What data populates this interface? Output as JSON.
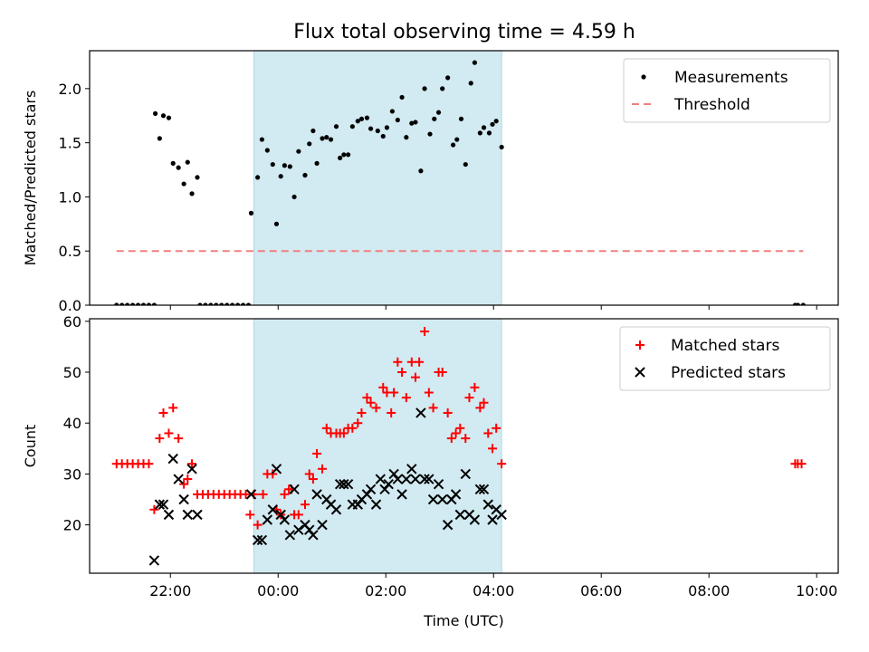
{
  "figure": {
    "title": "Flux total observing time = 4.59 h"
  },
  "colors": {
    "shade": "#add8e6",
    "measurement": "#000000",
    "threshold": "#f08080",
    "matched": "#ff0000",
    "predicted": "#000000"
  },
  "chart_data": [
    {
      "type": "scatter",
      "ylabel": "Matched/Predicted stars",
      "xlim_hours_utc_since_prev_midnight": [
        20.5,
        34.4
      ],
      "ylim": [
        0,
        2.35
      ],
      "yticks": [
        "0.0",
        "0.5",
        "1.0",
        "1.5",
        "2.0"
      ],
      "shaded_interval_utc": [
        "23:33",
        "04:09"
      ],
      "legend_position": "top-right",
      "threshold": {
        "name": "Threshold",
        "value": 0.5,
        "x_range_utc": [
          "21:00",
          "09:45"
        ],
        "style": "dashed"
      },
      "series": [
        {
          "name": "Measurements",
          "marker": "dot",
          "points_utc_hour": [
            [
              21.0,
              0
            ],
            [
              21.1,
              0
            ],
            [
              21.2,
              0
            ],
            [
              21.3,
              0
            ],
            [
              21.4,
              0
            ],
            [
              21.5,
              0
            ],
            [
              21.6,
              0
            ],
            [
              21.7,
              0
            ],
            [
              21.72,
              1.77
            ],
            [
              21.8,
              1.54
            ],
            [
              21.87,
              1.75
            ],
            [
              21.97,
              1.73
            ],
            [
              22.05,
              1.31
            ],
            [
              22.15,
              1.27
            ],
            [
              22.25,
              1.12
            ],
            [
              22.32,
              1.32
            ],
            [
              22.4,
              1.03
            ],
            [
              22.5,
              1.18
            ],
            [
              22.55,
              0
            ],
            [
              22.65,
              0
            ],
            [
              22.75,
              0
            ],
            [
              22.85,
              0
            ],
            [
              22.95,
              0
            ],
            [
              23.05,
              0
            ],
            [
              23.15,
              0
            ],
            [
              23.25,
              0
            ],
            [
              23.35,
              0
            ],
            [
              23.45,
              0
            ],
            [
              23.5,
              0.85
            ],
            [
              23.62,
              1.18
            ],
            [
              23.7,
              1.53
            ],
            [
              23.8,
              1.43
            ],
            [
              23.9,
              1.3
            ],
            [
              23.97,
              0.75
            ],
            [
              24.05,
              1.19
            ],
            [
              24.12,
              1.29
            ],
            [
              24.22,
              1.28
            ],
            [
              24.3,
              1.0
            ],
            [
              24.38,
              1.42
            ],
            [
              24.5,
              1.2
            ],
            [
              24.58,
              1.49
            ],
            [
              24.65,
              1.61
            ],
            [
              24.72,
              1.31
            ],
            [
              24.82,
              1.54
            ],
            [
              24.9,
              1.55
            ],
            [
              24.98,
              1.53
            ],
            [
              25.08,
              1.65
            ],
            [
              25.15,
              1.36
            ],
            [
              25.22,
              1.39
            ],
            [
              25.3,
              1.39
            ],
            [
              25.38,
              1.65
            ],
            [
              25.48,
              1.7
            ],
            [
              25.55,
              1.72
            ],
            [
              25.65,
              1.73
            ],
            [
              25.72,
              1.63
            ],
            [
              25.85,
              1.61
            ],
            [
              25.95,
              1.56
            ],
            [
              26.02,
              1.64
            ],
            [
              26.12,
              1.79
            ],
            [
              26.22,
              1.71
            ],
            [
              26.3,
              1.92
            ],
            [
              26.38,
              1.55
            ],
            [
              26.48,
              1.68
            ],
            [
              26.55,
              1.69
            ],
            [
              26.65,
              1.24
            ],
            [
              26.72,
              2.0
            ],
            [
              26.82,
              1.58
            ],
            [
              26.9,
              1.72
            ],
            [
              26.98,
              1.78
            ],
            [
              27.05,
              2.0
            ],
            [
              27.15,
              2.1
            ],
            [
              27.25,
              1.48
            ],
            [
              27.32,
              1.53
            ],
            [
              27.4,
              1.72
            ],
            [
              27.48,
              1.3
            ],
            [
              27.58,
              2.05
            ],
            [
              27.65,
              2.24
            ],
            [
              27.75,
              1.59
            ],
            [
              27.82,
              1.64
            ],
            [
              27.92,
              1.59
            ],
            [
              27.98,
              1.67
            ],
            [
              28.05,
              1.7
            ],
            [
              28.15,
              1.46
            ],
            [
              33.6,
              0
            ],
            [
              33.65,
              0
            ],
            [
              33.75,
              0
            ]
          ]
        }
      ]
    },
    {
      "type": "scatter",
      "xlabel": "Time (UTC)",
      "ylabel": "Count",
      "xlim_hours_utc_since_prev_midnight": [
        20.5,
        34.4
      ],
      "ylim": [
        10.5,
        60.5
      ],
      "yticks": [
        "20",
        "30",
        "40",
        "50",
        "60"
      ],
      "xticks": [
        "22:00",
        "00:00",
        "02:00",
        "04:00",
        "06:00",
        "08:00",
        "10:00"
      ],
      "shaded_interval_utc": [
        "23:33",
        "04:09"
      ],
      "legend_position": "top-right",
      "series": [
        {
          "name": "Matched stars",
          "marker": "plus",
          "points_utc_hour": [
            [
              21.0,
              32
            ],
            [
              21.1,
              32
            ],
            [
              21.2,
              32
            ],
            [
              21.3,
              32
            ],
            [
              21.4,
              32
            ],
            [
              21.5,
              32
            ],
            [
              21.6,
              32
            ],
            [
              21.7,
              23
            ],
            [
              21.8,
              37
            ],
            [
              21.87,
              42
            ],
            [
              21.97,
              38
            ],
            [
              22.05,
              43
            ],
            [
              22.15,
              37
            ],
            [
              22.25,
              28
            ],
            [
              22.32,
              29
            ],
            [
              22.4,
              32
            ],
            [
              22.5,
              26
            ],
            [
              22.6,
              26
            ],
            [
              22.7,
              26
            ],
            [
              22.8,
              26
            ],
            [
              22.9,
              26
            ],
            [
              23.0,
              26
            ],
            [
              23.1,
              26
            ],
            [
              23.2,
              26
            ],
            [
              23.3,
              26
            ],
            [
              23.4,
              26
            ],
            [
              23.48,
              22
            ],
            [
              23.55,
              26
            ],
            [
              23.62,
              20
            ],
            [
              23.72,
              26
            ],
            [
              23.8,
              30
            ],
            [
              23.9,
              30
            ],
            [
              23.97,
              23
            ],
            [
              24.05,
              22
            ],
            [
              24.12,
              26
            ],
            [
              24.2,
              27
            ],
            [
              24.25,
              27
            ],
            [
              24.3,
              22
            ],
            [
              24.38,
              22
            ],
            [
              24.5,
              24
            ],
            [
              24.58,
              30
            ],
            [
              24.65,
              29
            ],
            [
              24.72,
              34
            ],
            [
              24.82,
              31
            ],
            [
              24.9,
              39
            ],
            [
              24.98,
              38
            ],
            [
              25.08,
              38
            ],
            [
              25.15,
              38
            ],
            [
              25.22,
              38
            ],
            [
              25.3,
              39
            ],
            [
              25.38,
              39
            ],
            [
              25.48,
              40
            ],
            [
              25.55,
              42
            ],
            [
              25.65,
              45
            ],
            [
              25.72,
              44
            ],
            [
              25.82,
              43
            ],
            [
              25.95,
              47
            ],
            [
              26.02,
              46
            ],
            [
              26.1,
              42
            ],
            [
              26.15,
              46
            ],
            [
              26.22,
              52
            ],
            [
              26.3,
              50
            ],
            [
              26.38,
              45
            ],
            [
              26.48,
              52
            ],
            [
              26.55,
              49
            ],
            [
              26.62,
              52
            ],
            [
              26.72,
              58
            ],
            [
              26.8,
              46
            ],
            [
              26.88,
              43
            ],
            [
              26.98,
              50
            ],
            [
              27.05,
              50
            ],
            [
              27.15,
              42
            ],
            [
              27.22,
              37
            ],
            [
              27.3,
              38
            ],
            [
              27.38,
              39
            ],
            [
              27.48,
              37
            ],
            [
              27.55,
              45
            ],
            [
              27.65,
              47
            ],
            [
              27.75,
              43
            ],
            [
              27.82,
              44
            ],
            [
              27.9,
              38
            ],
            [
              27.98,
              35
            ],
            [
              28.05,
              39
            ],
            [
              28.15,
              32
            ],
            [
              33.6,
              32
            ],
            [
              33.65,
              32
            ],
            [
              33.72,
              32
            ]
          ]
        },
        {
          "name": "Predicted stars",
          "marker": "x",
          "points_utc_hour": [
            [
              21.7,
              13
            ],
            [
              21.8,
              24
            ],
            [
              21.87,
              24
            ],
            [
              21.97,
              22
            ],
            [
              22.05,
              33
            ],
            [
              22.15,
              29
            ],
            [
              22.25,
              25
            ],
            [
              22.32,
              22
            ],
            [
              22.4,
              31
            ],
            [
              22.5,
              22
            ],
            [
              23.5,
              26
            ],
            [
              23.62,
              17
            ],
            [
              23.7,
              17
            ],
            [
              23.8,
              21
            ],
            [
              23.9,
              23
            ],
            [
              23.97,
              31
            ],
            [
              24.05,
              22
            ],
            [
              24.12,
              21
            ],
            [
              24.22,
              18
            ],
            [
              24.3,
              27
            ],
            [
              24.38,
              19
            ],
            [
              24.5,
              20
            ],
            [
              24.58,
              19
            ],
            [
              24.65,
              18
            ],
            [
              24.72,
              26
            ],
            [
              24.82,
              20
            ],
            [
              24.9,
              25
            ],
            [
              24.98,
              24
            ],
            [
              25.08,
              23
            ],
            [
              25.15,
              28
            ],
            [
              25.22,
              28
            ],
            [
              25.3,
              28
            ],
            [
              25.38,
              24
            ],
            [
              25.48,
              24
            ],
            [
              25.55,
              25
            ],
            [
              25.65,
              26
            ],
            [
              25.72,
              27
            ],
            [
              25.82,
              24
            ],
            [
              25.9,
              29
            ],
            [
              25.98,
              27
            ],
            [
              26.05,
              28
            ],
            [
              26.15,
              30
            ],
            [
              26.22,
              29
            ],
            [
              26.3,
              26
            ],
            [
              26.38,
              29
            ],
            [
              26.48,
              31
            ],
            [
              26.55,
              29
            ],
            [
              26.65,
              42
            ],
            [
              26.72,
              29
            ],
            [
              26.8,
              29
            ],
            [
              26.88,
              25
            ],
            [
              26.98,
              28
            ],
            [
              27.05,
              25
            ],
            [
              27.15,
              20
            ],
            [
              27.22,
              25
            ],
            [
              27.3,
              26
            ],
            [
              27.38,
              22
            ],
            [
              27.48,
              30
            ],
            [
              27.55,
              22
            ],
            [
              27.65,
              21
            ],
            [
              27.75,
              27
            ],
            [
              27.82,
              27
            ],
            [
              27.9,
              24
            ],
            [
              27.98,
              21
            ],
            [
              28.05,
              23
            ],
            [
              28.15,
              22
            ]
          ]
        }
      ]
    }
  ]
}
